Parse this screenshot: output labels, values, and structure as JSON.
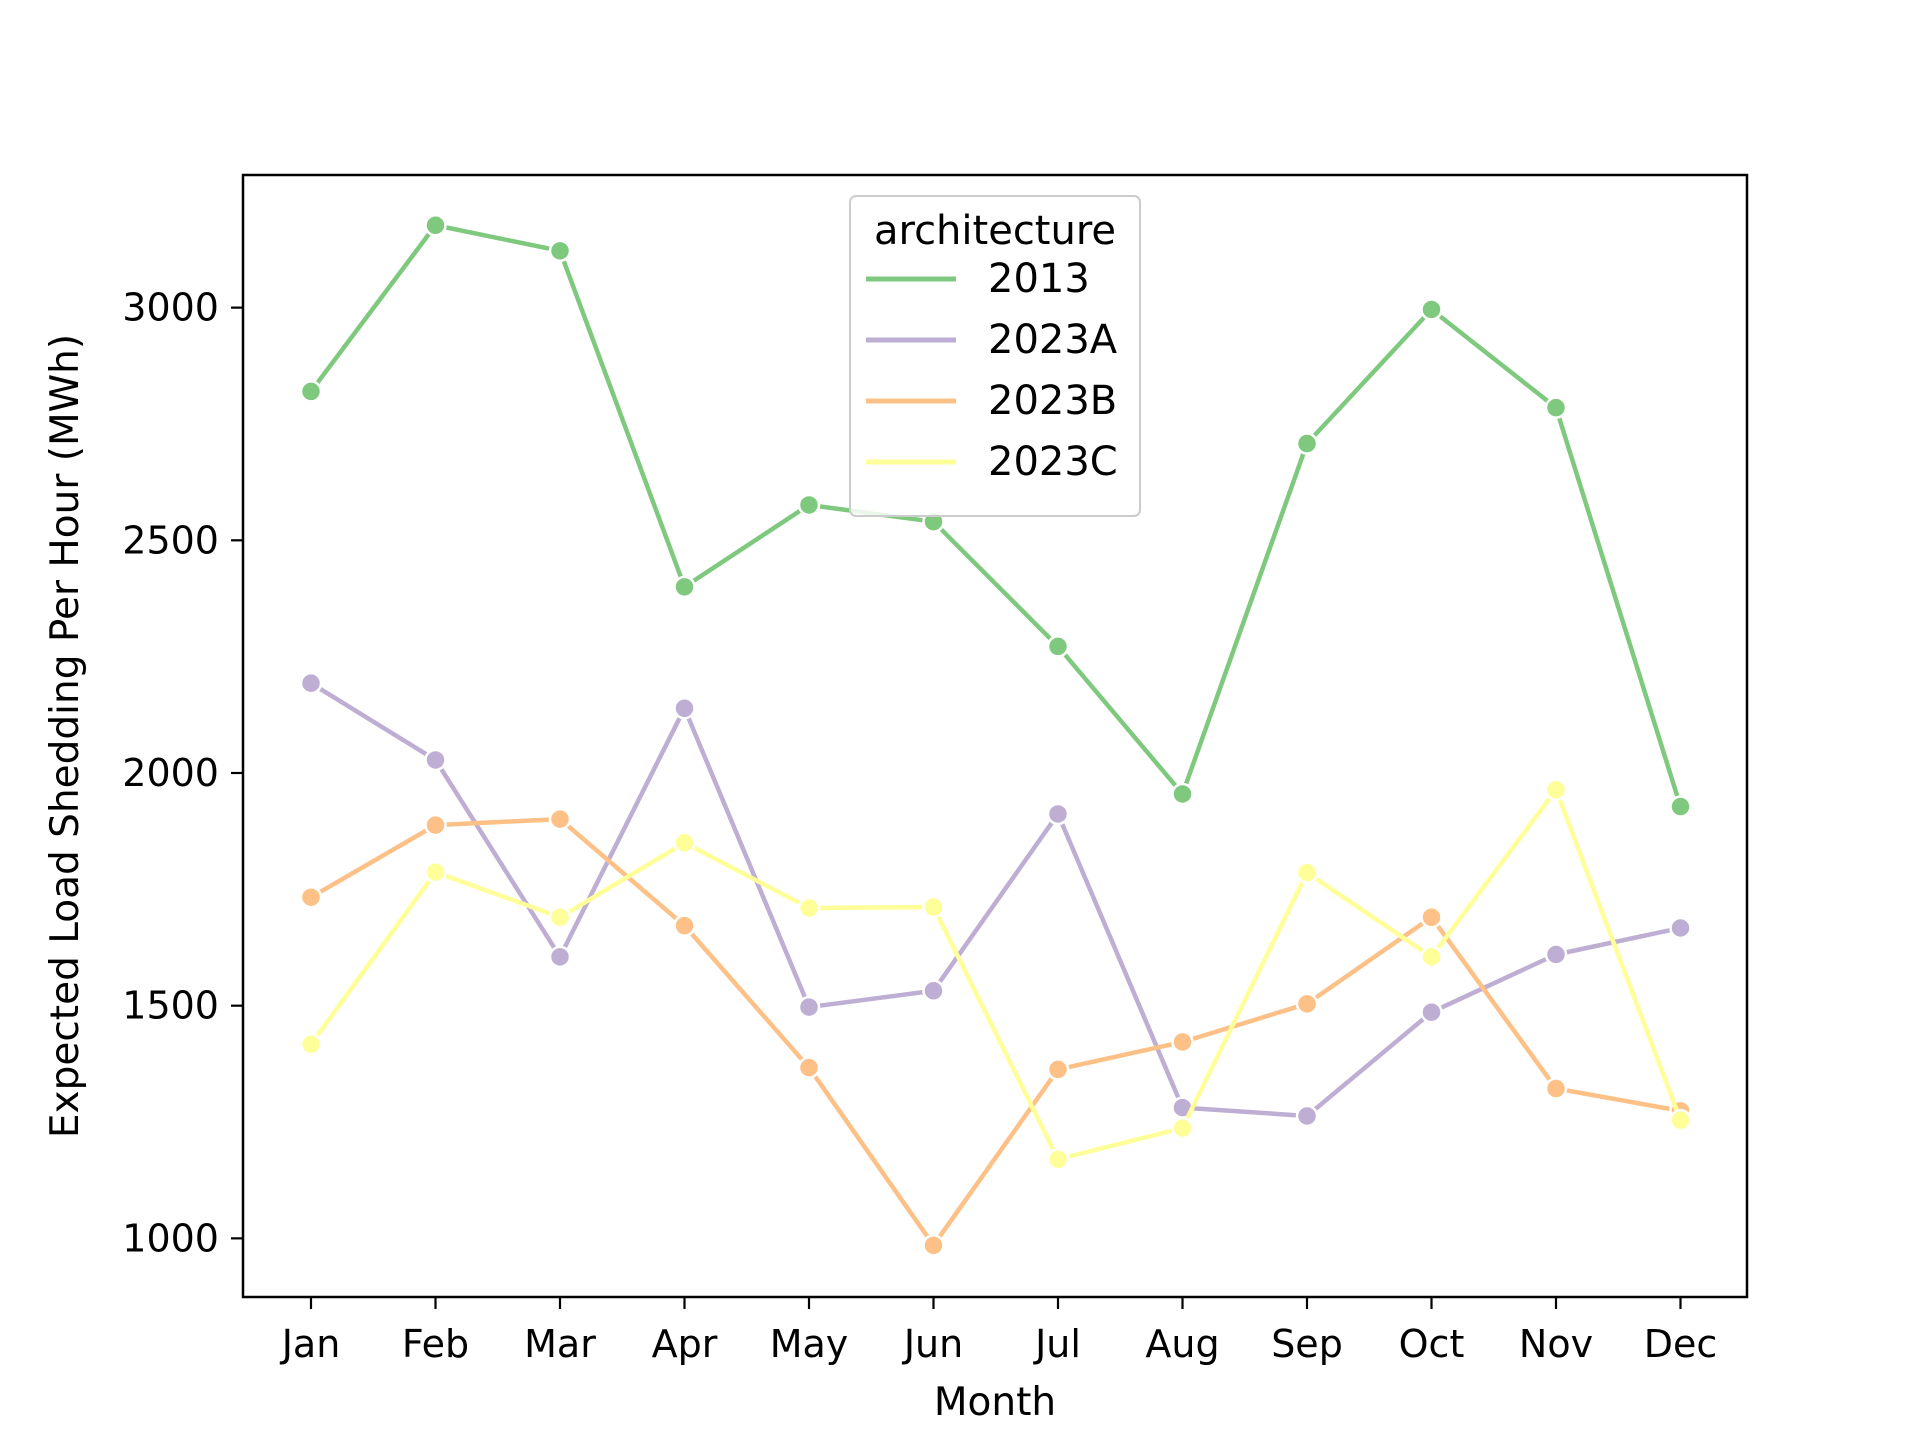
{
  "chart_data": {
    "type": "line",
    "title": "",
    "xlabel": "Month",
    "ylabel": "Expected Load Shedding Per Hour (MWh)",
    "categories": [
      "Jan",
      "Feb",
      "Mar",
      "Apr",
      "May",
      "Jun",
      "Jul",
      "Aug",
      "Sep",
      "Oct",
      "Nov",
      "Dec"
    ],
    "ylim": [
      874,
      3285
    ],
    "yticks": [
      1000,
      1500,
      2000,
      2500,
      3000
    ],
    "grid": false,
    "legend": {
      "title": "architecture",
      "placement": "top-center"
    },
    "series": [
      {
        "name": "2013",
        "color": "#7fc97f",
        "values": [
          2820,
          3177,
          3122,
          2400,
          2576,
          2540,
          2272,
          1955,
          2708,
          2996,
          2785,
          1928
        ]
      },
      {
        "name": "2023A",
        "color": "#beaed4",
        "values": [
          2193,
          2028,
          1605,
          2139,
          1497,
          1532,
          1912,
          1281,
          1263,
          1486,
          1610,
          1667
        ]
      },
      {
        "name": "2023B",
        "color": "#fdc086",
        "values": [
          1733,
          1888,
          1901,
          1672,
          1367,
          985,
          1363,
          1422,
          1504,
          1690,
          1322,
          1274
        ]
      },
      {
        "name": "2023C",
        "color": "#ffff99",
        "values": [
          1417,
          1787,
          1690,
          1850,
          1710,
          1712,
          1170,
          1237,
          1786,
          1605,
          1964,
          1254
        ]
      }
    ]
  }
}
